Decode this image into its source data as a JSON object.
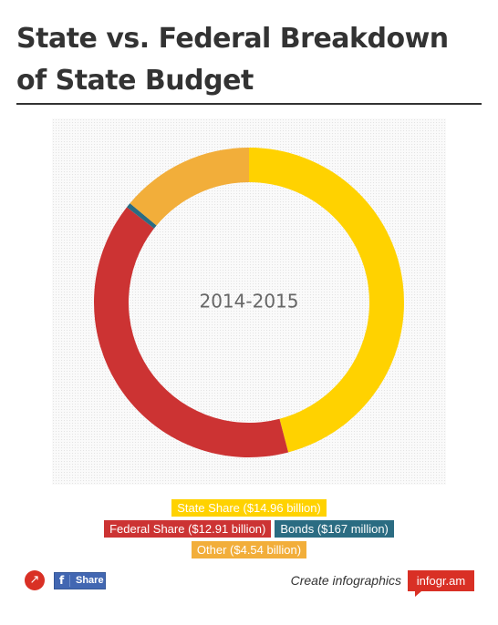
{
  "title": "State vs. Federal Breakdown of State Budget",
  "chart_data": {
    "type": "donut",
    "center_label": "2014-2015",
    "start_angle_deg": 0,
    "direction": "clockwise",
    "slices": [
      {
        "label": "State Share ($14.96 billion)",
        "value": 14.96,
        "color": "#FFD200"
      },
      {
        "label": "Federal Share ($12.91 billion)",
        "value": 12.91,
        "color": "#CC3333"
      },
      {
        "label": "Bonds ($167 million)",
        "value": 0.167,
        "color": "#2B6C82"
      },
      {
        "label": "Other ($4.54 billion)",
        "value": 4.54,
        "color": "#F2AE3A"
      }
    ],
    "legend_position": "bottom"
  },
  "footer": {
    "share_icon": "share-icon",
    "fb_icon_glyph": "f",
    "fb_share_label": "Share",
    "create_text": "Create infographics",
    "brand_label": "infogr.am",
    "brand_color": "#D93025",
    "fb_color": "#4267B2"
  }
}
